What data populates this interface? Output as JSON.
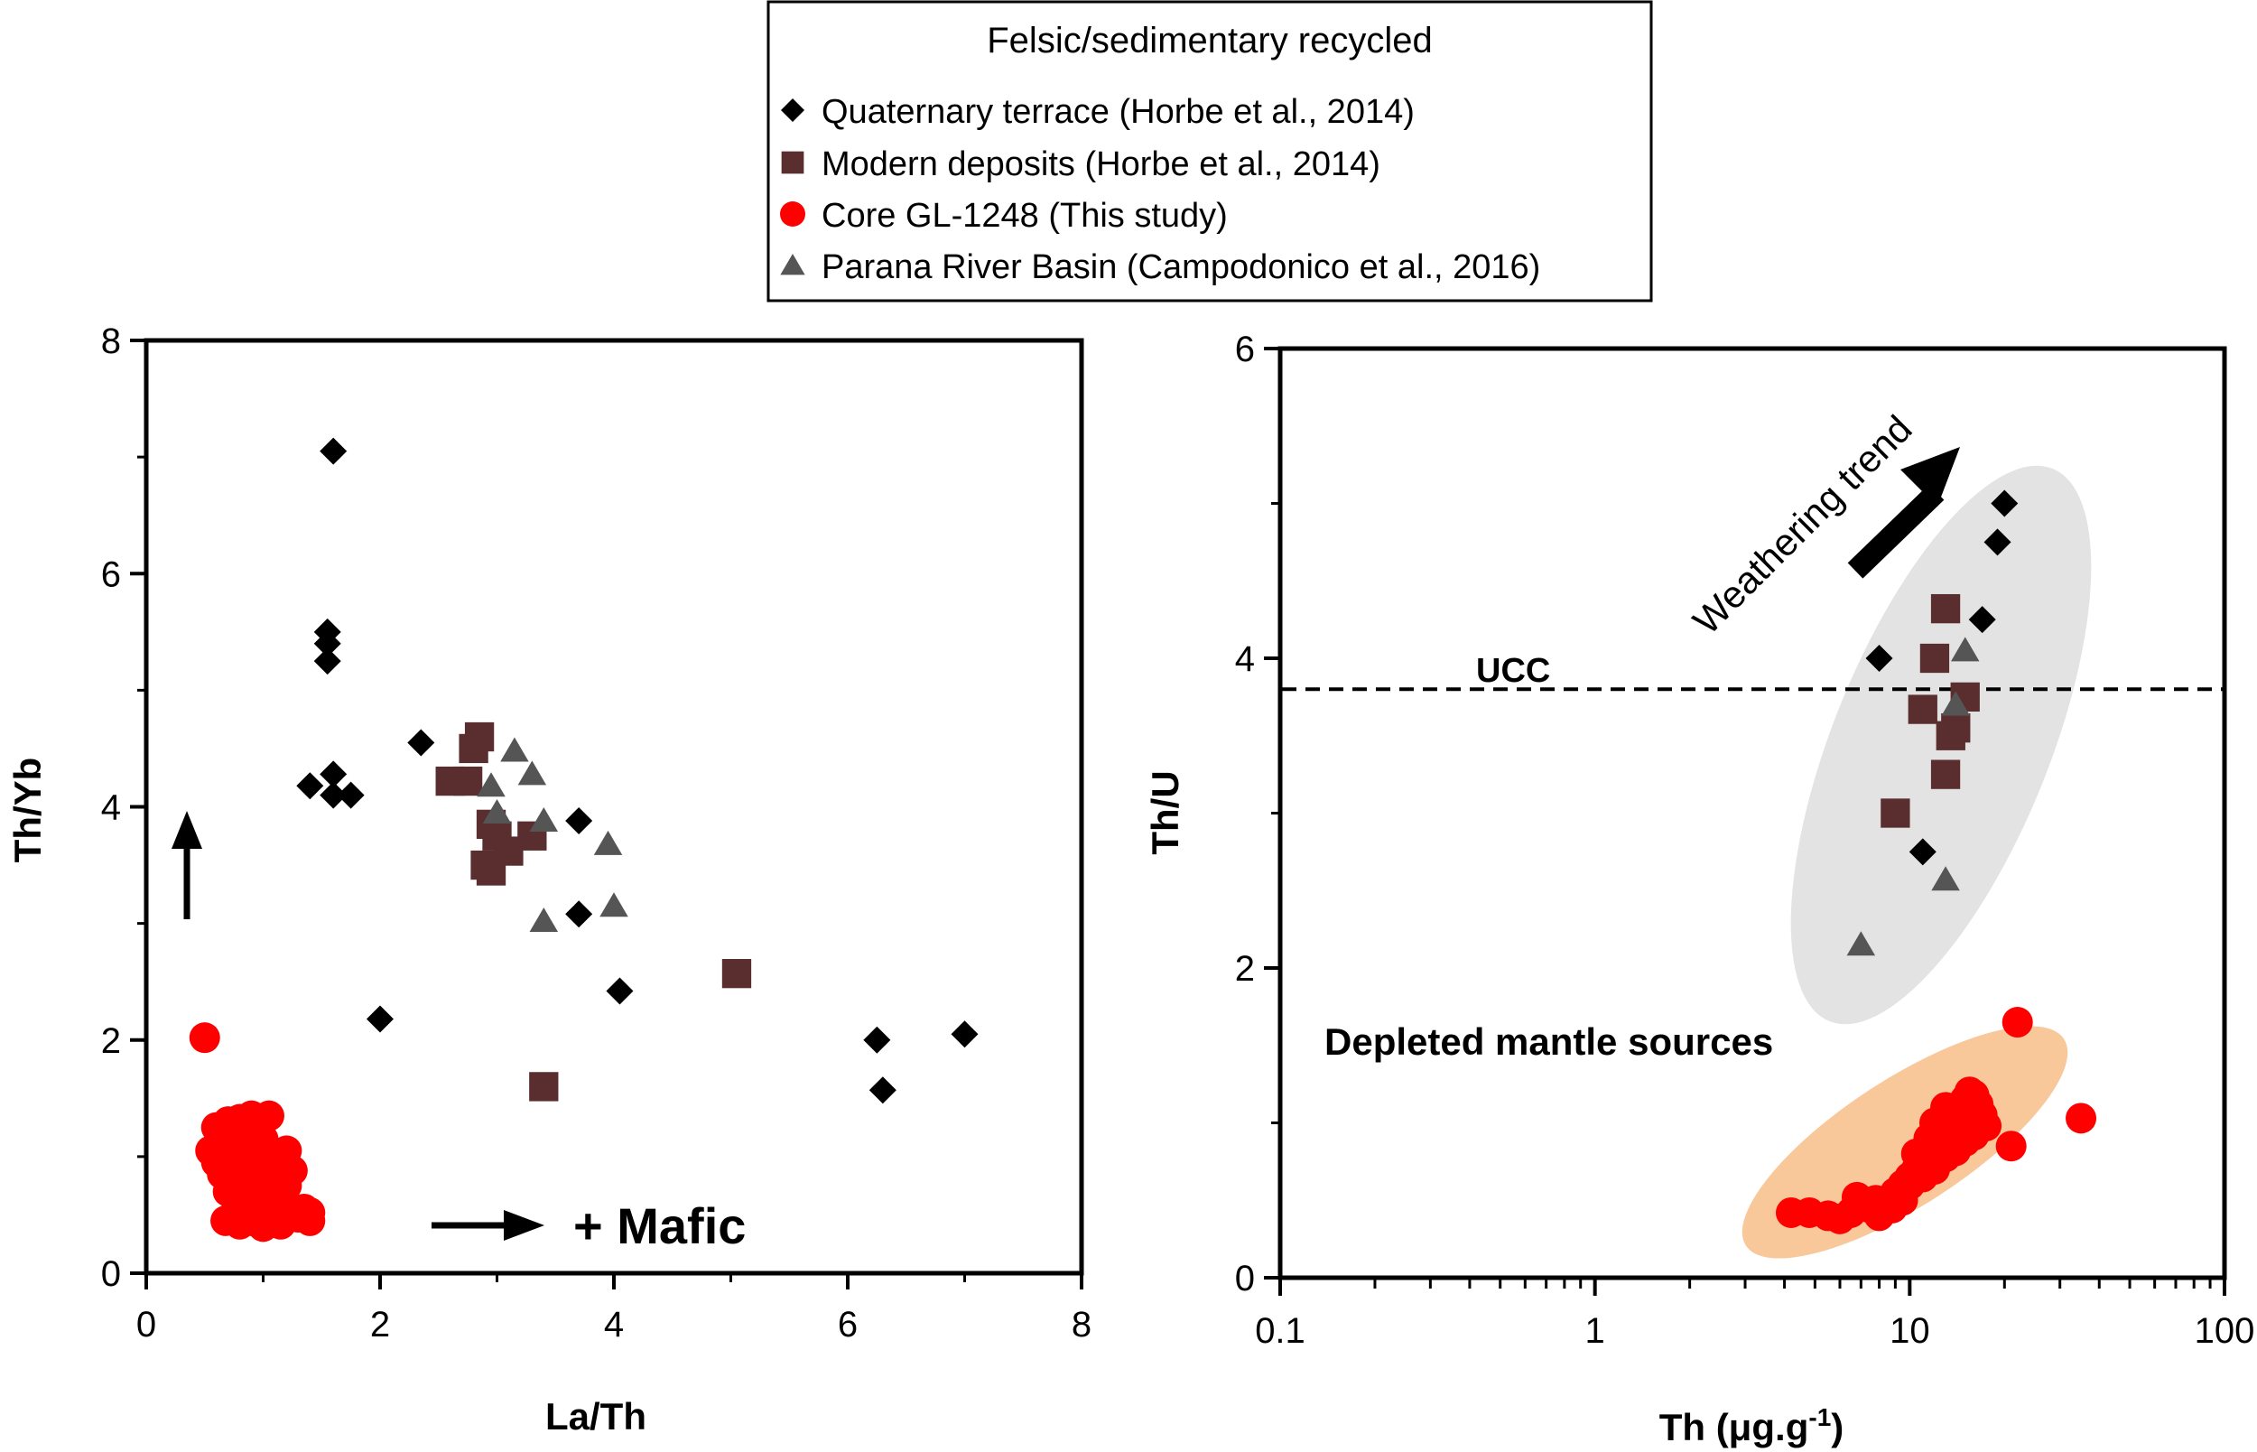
{
  "legend": {
    "title": "Felsic/sedimentary recycled",
    "entries": [
      {
        "label": "Quaternary terrace (Horbe et al., 2014)",
        "marker": "diamond",
        "color": "#000000"
      },
      {
        "label": "Modern deposits (Horbe et al., 2014)",
        "marker": "square",
        "color": "#5a2e2e"
      },
      {
        "label": "Core GL-1248 (This study)",
        "marker": "circle",
        "color": "#ff0000"
      },
      {
        "label": "Parana River Basin (Campodonico et al., 2016)",
        "marker": "triangle",
        "color": "#555555"
      }
    ]
  },
  "chart_data": [
    {
      "id": "left",
      "type": "scatter",
      "xlabel": "La/Th",
      "ylabel": "Th/Yb",
      "xlim": [
        0,
        8
      ],
      "ylim": [
        0,
        8
      ],
      "xticks": [
        "0",
        "2",
        "4",
        "6",
        "8"
      ],
      "yticks": [
        "0",
        "2",
        "4",
        "6",
        "8"
      ],
      "annotation": "+ Mafic",
      "series": [
        {
          "name": "Quaternary terrace (Horbe et al., 2014)",
          "marker": "diamond",
          "color": "#000000",
          "points": [
            [
              1.6,
              7.05
            ],
            [
              1.55,
              5.5
            ],
            [
              1.55,
              5.4
            ],
            [
              1.55,
              5.25
            ],
            [
              1.4,
              4.18
            ],
            [
              1.6,
              4.28
            ],
            [
              1.6,
              4.1
            ],
            [
              1.75,
              4.1
            ],
            [
              2.35,
              4.55
            ],
            [
              3.7,
              3.88
            ],
            [
              3.7,
              3.08
            ],
            [
              4.05,
              2.42
            ],
            [
              2.0,
              2.18
            ],
            [
              6.25,
              2.0
            ],
            [
              6.3,
              1.57
            ],
            [
              7.0,
              2.05
            ]
          ]
        },
        {
          "name": "Modern deposits (Horbe et al., 2014)",
          "marker": "square",
          "color": "#5a2e2e",
          "points": [
            [
              2.85,
              4.6
            ],
            [
              2.8,
              4.5
            ],
            [
              2.6,
              4.22
            ],
            [
              2.75,
              4.22
            ],
            [
              2.95,
              3.85
            ],
            [
              3.0,
              3.75
            ],
            [
              3.1,
              3.62
            ],
            [
              3.3,
              3.75
            ],
            [
              2.9,
              3.5
            ],
            [
              2.95,
              3.45
            ],
            [
              5.05,
              2.57
            ],
            [
              3.4,
              1.6
            ]
          ]
        },
        {
          "name": "Parana River Basin (Campodonico et al., 2016)",
          "marker": "triangle",
          "color": "#555555",
          "points": [
            [
              3.15,
              4.48
            ],
            [
              3.3,
              4.28
            ],
            [
              2.95,
              4.18
            ],
            [
              3.0,
              3.95
            ],
            [
              3.4,
              3.88
            ],
            [
              3.95,
              3.68
            ],
            [
              4.0,
              3.15
            ],
            [
              3.4,
              3.02
            ]
          ]
        },
        {
          "name": "Core GL-1248 (This study)",
          "marker": "circle",
          "color": "#ff0000",
          "points": [
            [
              0.5,
              2.02
            ],
            [
              0.6,
              1.25
            ],
            [
              0.7,
              1.3
            ],
            [
              0.8,
              1.32
            ],
            [
              0.9,
              1.35
            ],
            [
              1.05,
              1.35
            ],
            [
              0.55,
              1.05
            ],
            [
              0.65,
              1.15
            ],
            [
              0.75,
              1.2
            ],
            [
              0.85,
              1.2
            ],
            [
              0.95,
              1.25
            ],
            [
              1.0,
              1.15
            ],
            [
              0.6,
              0.95
            ],
            [
              0.7,
              1.0
            ],
            [
              0.8,
              1.05
            ],
            [
              0.9,
              1.0
            ],
            [
              1.0,
              0.95
            ],
            [
              1.1,
              1.0
            ],
            [
              1.2,
              1.05
            ],
            [
              0.65,
              0.85
            ],
            [
              0.75,
              0.9
            ],
            [
              0.85,
              0.85
            ],
            [
              0.95,
              0.8
            ],
            [
              1.05,
              0.85
            ],
            [
              1.15,
              0.9
            ],
            [
              1.25,
              0.88
            ],
            [
              0.7,
              0.7
            ],
            [
              0.8,
              0.75
            ],
            [
              0.9,
              0.7
            ],
            [
              1.0,
              0.65
            ],
            [
              1.1,
              0.72
            ],
            [
              1.2,
              0.75
            ],
            [
              0.85,
              0.6
            ],
            [
              0.95,
              0.55
            ],
            [
              1.05,
              0.58
            ],
            [
              1.15,
              0.6
            ],
            [
              0.75,
              0.5
            ],
            [
              0.9,
              0.45
            ],
            [
              1.0,
              0.48
            ],
            [
              1.1,
              0.5
            ],
            [
              0.68,
              0.45
            ],
            [
              0.8,
              0.42
            ],
            [
              1.0,
              0.4
            ],
            [
              1.15,
              0.42
            ],
            [
              1.3,
              0.48
            ],
            [
              1.35,
              0.55
            ],
            [
              1.4,
              0.52
            ],
            [
              1.4,
              0.45
            ]
          ]
        }
      ]
    },
    {
      "id": "right",
      "type": "scatter",
      "xscale": "log",
      "xlabel": "Th (μg.g",
      "xlabel_sup": "-1",
      "xlabel_close": ")",
      "ylabel": "Th/U",
      "xlim": [
        0.1,
        100
      ],
      "ylim": [
        0,
        6
      ],
      "xticks": [
        "0.1",
        "1",
        "10",
        "100"
      ],
      "yticks": [
        "0",
        "2",
        "4",
        "6"
      ],
      "reference_line": {
        "label": "UCC",
        "y": 3.8
      },
      "trend_label": "Weathering trend",
      "region_label": "Depleted mantle sources",
      "series": [
        {
          "name": "Quaternary terrace (Horbe et al., 2014)",
          "marker": "diamond",
          "color": "#000000",
          "points": [
            [
              20,
              5.0
            ],
            [
              19,
              4.75
            ],
            [
              17,
              4.25
            ],
            [
              8,
              4.0
            ],
            [
              11,
              2.75
            ]
          ]
        },
        {
          "name": "Modern deposits (Horbe et al., 2014)",
          "marker": "square",
          "color": "#5a2e2e",
          "points": [
            [
              13,
              4.32
            ],
            [
              12,
              4.0
            ],
            [
              15,
              3.75
            ],
            [
              11,
              3.67
            ],
            [
              13.5,
              3.5
            ],
            [
              14,
              3.55
            ],
            [
              13,
              3.25
            ],
            [
              9,
              3.0
            ]
          ]
        },
        {
          "name": "Parana River Basin (Campodonico et al., 2016)",
          "marker": "triangle",
          "color": "#555555",
          "points": [
            [
              15,
              4.05
            ],
            [
              14,
              3.7
            ],
            [
              13,
              2.57
            ],
            [
              7,
              2.15
            ]
          ]
        },
        {
          "name": "Core GL-1248 (This study)",
          "marker": "circle",
          "color": "#ff0000",
          "points": [
            [
              22,
              1.65
            ],
            [
              35,
              1.03
            ],
            [
              21,
              0.85
            ],
            [
              4.2,
              0.42
            ],
            [
              4.8,
              0.42
            ],
            [
              5.5,
              0.4
            ],
            [
              6.0,
              0.38
            ],
            [
              6.5,
              0.42
            ],
            [
              7.0,
              0.48
            ],
            [
              7.5,
              0.45
            ],
            [
              8.0,
              0.4
            ],
            [
              8.5,
              0.48
            ],
            [
              9.0,
              0.55
            ],
            [
              9.5,
              0.6
            ],
            [
              10.0,
              0.65
            ],
            [
              10.5,
              0.7
            ],
            [
              11.0,
              0.75
            ],
            [
              11.5,
              0.8
            ],
            [
              12.0,
              0.85
            ],
            [
              12.5,
              0.9
            ],
            [
              13.0,
              0.95
            ],
            [
              13.5,
              1.0
            ],
            [
              14.0,
              1.05
            ],
            [
              14.5,
              1.1
            ],
            [
              15.0,
              1.15
            ],
            [
              15.5,
              1.2
            ],
            [
              16.0,
              1.18
            ],
            [
              16.5,
              1.12
            ],
            [
              17.0,
              1.05
            ],
            [
              17.5,
              0.98
            ],
            [
              16.0,
              0.92
            ],
            [
              15.0,
              0.88
            ],
            [
              14.0,
              0.82
            ],
            [
              13.0,
              0.78
            ],
            [
              12.0,
              0.7
            ],
            [
              11.0,
              0.65
            ],
            [
              10.0,
              0.6
            ],
            [
              9.5,
              0.5
            ],
            [
              8.8,
              0.45
            ],
            [
              7.8,
              0.5
            ],
            [
              6.8,
              0.52
            ],
            [
              12.0,
              1.0
            ],
            [
              13.0,
              1.1
            ],
            [
              14.5,
              0.95
            ],
            [
              15.5,
              1.0
            ],
            [
              16.5,
              1.0
            ],
            [
              11.5,
              0.9
            ],
            [
              10.5,
              0.8
            ]
          ]
        }
      ]
    }
  ]
}
